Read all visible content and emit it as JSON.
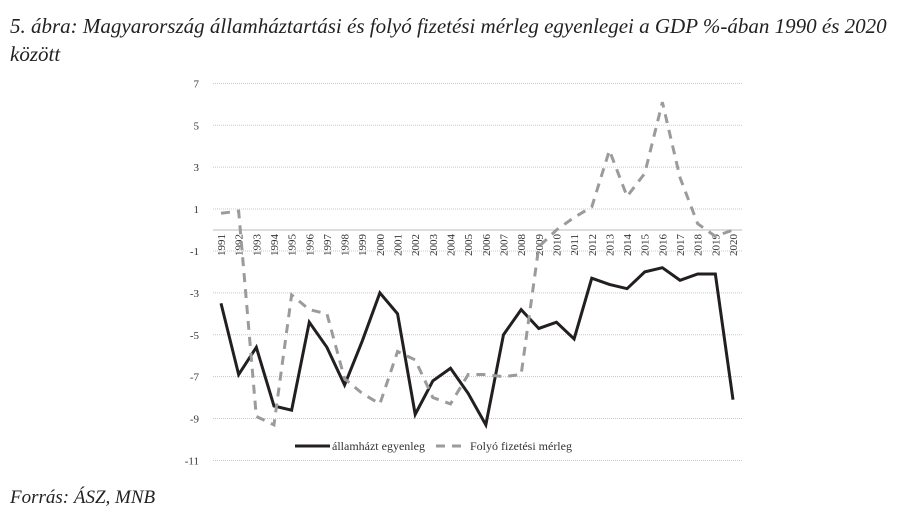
{
  "title": "5. ábra: Magyarország államháztartási és folyó fizetési mérleg egyenlegei a GDP %-ában 1990 és 2020 között",
  "source": "Forrás: ÁSZ, MNB",
  "chart_data": {
    "type": "line",
    "title": "",
    "xlabel": "",
    "ylabel": "",
    "ylim": [
      -11,
      7
    ],
    "yticks": [
      7,
      5,
      3,
      1,
      -1,
      -3,
      -5,
      -7,
      -9,
      -11
    ],
    "grid": true,
    "legend": "bottom",
    "x": [
      "1991",
      "1992",
      "1993",
      "1994",
      "1995",
      "1996",
      "1997",
      "1998",
      "1999",
      "2000",
      "2001",
      "2002",
      "2003",
      "2004",
      "2005",
      "2006",
      "2007",
      "2008",
      "2009",
      "2010",
      "2011",
      "2012",
      "2013",
      "2014",
      "2015",
      "2016",
      "2017",
      "2018",
      "2019",
      "2020"
    ],
    "series": [
      {
        "name": "államházt egyenleg",
        "color": "#231f20",
        "style": "solid",
        "values": [
          -3.5,
          -6.9,
          -5.6,
          -8.4,
          -8.6,
          -4.4,
          -5.6,
          -7.4,
          -5.3,
          -3.0,
          -4.0,
          -8.8,
          -7.2,
          -6.6,
          -7.8,
          -9.3,
          -5.0,
          -3.8,
          -4.7,
          -4.4,
          -5.2,
          -2.3,
          -2.6,
          -2.8,
          -2.0,
          -1.8,
          -2.4,
          -2.1,
          -2.1,
          -8.1
        ]
      },
      {
        "name": "Folyó fizetési mérleg",
        "color": "#9a9c9c",
        "style": "dashed",
        "values": [
          0.8,
          0.9,
          -8.9,
          -9.3,
          -3.1,
          -3.8,
          -4.0,
          -7.1,
          -7.8,
          -8.3,
          -5.8,
          -6.2,
          -8.0,
          -8.3,
          -6.9,
          -6.9,
          -7.0,
          -6.9,
          -0.8,
          0.0,
          0.6,
          1.1,
          3.8,
          1.6,
          2.7,
          6.1,
          2.5,
          0.3,
          -0.3,
          0.0
        ]
      }
    ]
  }
}
